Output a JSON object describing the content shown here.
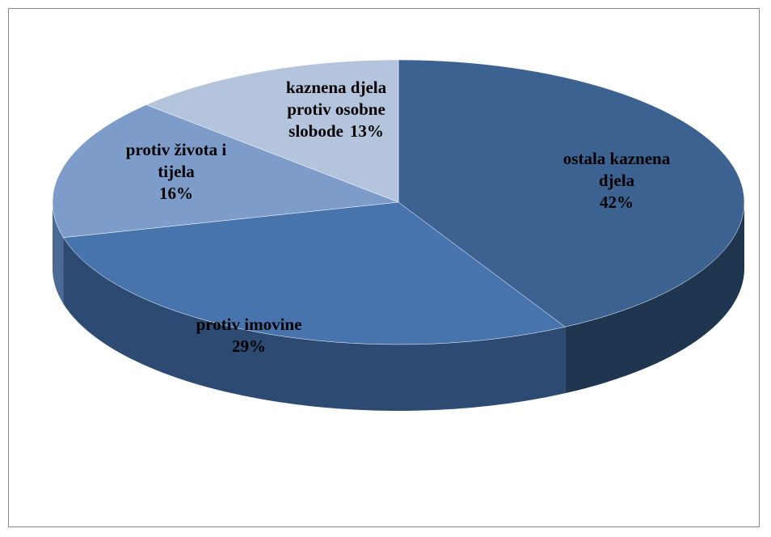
{
  "chart_data": {
    "type": "pie",
    "categories": [
      "ostala kaznena djela",
      "protiv imovine",
      "protiv života i tijela",
      "kaznena djela protiv osobne slobode"
    ],
    "values": [
      42,
      29,
      16,
      13
    ],
    "value_labels": [
      "42%",
      "29%",
      "16%",
      "13%"
    ],
    "colors": [
      "#3b6290",
      "#4774ad",
      "#7e9cc9",
      "#b5c4dd"
    ],
    "side_colors": [
      "#1f3550",
      "#2c4a72",
      "#4b6a96",
      "#7d90b0"
    ],
    "three_d": true
  }
}
